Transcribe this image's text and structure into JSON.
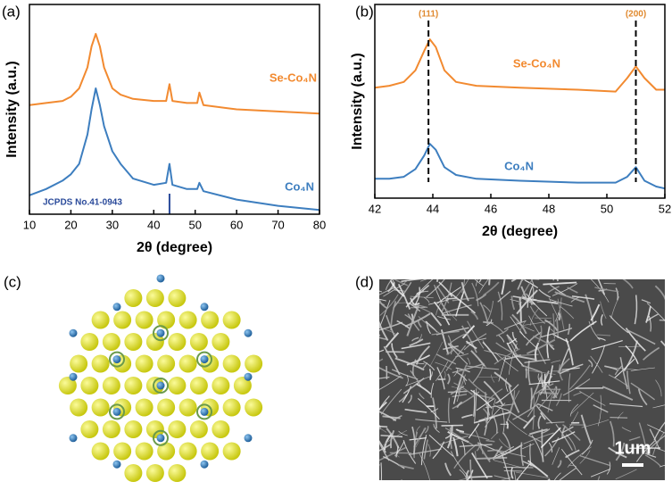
{
  "chart_data": [
    {
      "type": "line",
      "panel_label": "(a)",
      "xlabel": "2θ (degree)",
      "ylabel": "Intensity (a.u.)",
      "x": [
        10,
        14,
        18,
        20,
        22,
        24,
        25,
        26,
        27,
        28,
        30,
        32,
        35,
        40,
        43,
        43.8,
        44.5,
        48,
        50.5,
        51,
        52,
        60,
        70,
        80
      ],
      "series": [
        {
          "name": "Se-Co₄N",
          "color": "#f28a30",
          "values": [
            52,
            53,
            54,
            56,
            60,
            70,
            80,
            86,
            80,
            70,
            60,
            57,
            55,
            54,
            54,
            62,
            54,
            53,
            53,
            58,
            52,
            50,
            49,
            48
          ]
        },
        {
          "name": "Co₄N",
          "color": "#3d7ebf",
          "values": [
            9,
            12,
            16,
            19,
            24,
            38,
            50,
            60,
            52,
            42,
            30,
            24,
            17,
            14,
            15,
            24,
            14,
            12,
            12,
            15,
            11,
            7,
            4,
            2
          ]
        }
      ],
      "reference": {
        "label": "JCPDS No.41-0943",
        "x": 43.8,
        "color": "#2a4a9a"
      },
      "xlim": [
        10,
        80
      ],
      "xticks": [
        10,
        20,
        30,
        40,
        50,
        60,
        70,
        80
      ],
      "ylim": [
        0,
        100
      ]
    },
    {
      "type": "line",
      "panel_label": "(b)",
      "xlabel": "2θ (degree)",
      "ylabel": "Intensity (a.u.)",
      "x": [
        42,
        42.5,
        43,
        43.4,
        43.7,
        43.9,
        44.1,
        44.4,
        44.8,
        45.5,
        47,
        49,
        50.3,
        50.7,
        51,
        51.3,
        51.7,
        52
      ],
      "series": [
        {
          "name": "Se-Co₄N",
          "color": "#f28a30",
          "values": [
            57,
            58,
            60,
            66,
            76,
            82,
            78,
            66,
            60,
            58,
            57,
            56,
            55,
            62,
            68,
            62,
            56,
            56
          ]
        },
        {
          "name": "Co₄N",
          "color": "#3d7ebf",
          "values": [
            10,
            10,
            11,
            15,
            22,
            28,
            25,
            16,
            12,
            10,
            9,
            8,
            8,
            11,
            16,
            9,
            6,
            5
          ]
        }
      ],
      "peaks": [
        {
          "label": "(111)",
          "x": 43.85,
          "color": "#e08a30"
        },
        {
          "label": "(200)",
          "x": 51,
          "color": "#e08a30"
        }
      ],
      "xlim": [
        42,
        52
      ],
      "xticks": [
        42,
        44,
        46,
        48,
        50,
        52
      ],
      "ylim": [
        0,
        100
      ]
    }
  ],
  "structure": {
    "panel_label": "(c)"
  },
  "micrograph": {
    "panel_label": "(d)",
    "scale_bar": "1um"
  }
}
